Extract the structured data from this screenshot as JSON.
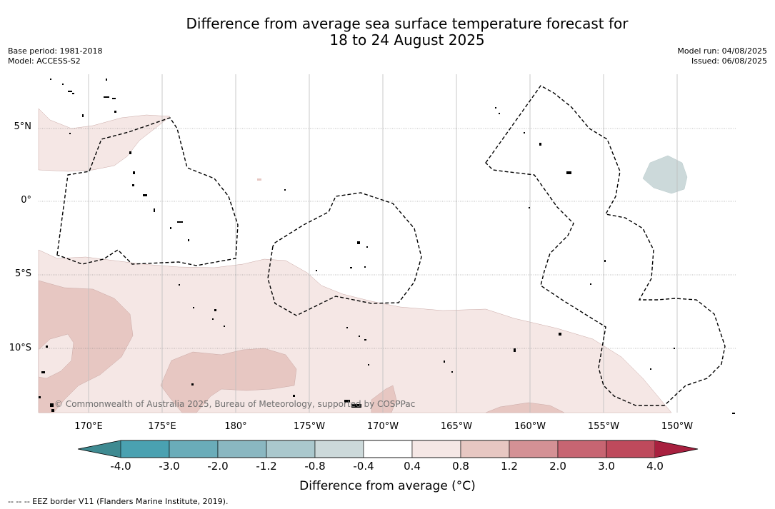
{
  "title_line1": "Difference from average sea surface temperature forecast for",
  "title_line2": "18 to 24 August 2025",
  "base_period": "Base period: 1981-2018",
  "model": "Model: ACCESS-S2",
  "model_run": "Model run: 04/08/2025",
  "issued": "Issued: 06/08/2025",
  "lon_labels": [
    "170°E",
    "175°E",
    "180°",
    "175°W",
    "170°W",
    "165°W",
    "160°W",
    "155°W",
    "150°W"
  ],
  "lat_labels": [
    "5°N",
    "0°",
    "5°S",
    "10°S"
  ],
  "copyright": "© Commonwealth of Australia 2025, Bureau of Meteorology, supported by COSPPac",
  "colorbar": {
    "title": "Difference from average (°C)",
    "ticks": [
      "-4.0",
      "-3.0",
      "-2.0",
      "-1.2",
      "-0.8",
      "-0.4",
      "0.4",
      "0.8",
      "1.2",
      "2.0",
      "3.0",
      "4.0"
    ],
    "colors": [
      "#3e8a91",
      "#4aa1b1",
      "#6aacb9",
      "#8ab7c1",
      "#aac8cd",
      "#ccd9da",
      "#ffffff",
      "#f5e7e5",
      "#e7c7c2",
      "#d49195",
      "#c76572",
      "#be4a5c",
      "#a8203f"
    ]
  },
  "footnote": "--  --  -- EEZ border V11 (Flanders Marine Institute, 2019)."
}
